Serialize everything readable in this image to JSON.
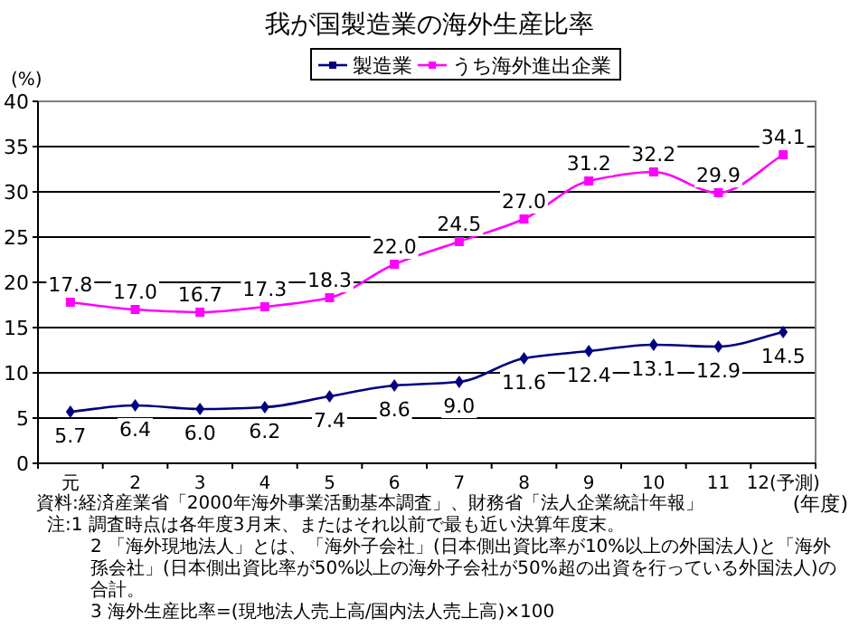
{
  "chart_data": {
    "type": "line",
    "title": "我が国製造業の海外生産比率",
    "ylabel": "(%)",
    "xlabel": "(年度)",
    "categories": [
      "元",
      "2",
      "3",
      "4",
      "5",
      "6",
      "7",
      "8",
      "9",
      "10",
      "11",
      "12(予測)"
    ],
    "series": [
      {
        "name": "製造業",
        "color": "#000080",
        "marker": "diamond",
        "values": [
          5.7,
          6.4,
          6.0,
          6.2,
          7.4,
          8.6,
          9.0,
          11.6,
          12.4,
          13.1,
          12.9,
          14.5
        ],
        "value_labels": [
          "5.7",
          "6.4",
          "6.0",
          "6.2",
          "7.4",
          "8.6",
          "9.0",
          "11.6",
          "12.4",
          "13.1",
          "12.9",
          "14.5"
        ]
      },
      {
        "name": "うち海外進出企業",
        "color": "#ff00ff",
        "marker": "square",
        "values": [
          17.8,
          17.0,
          16.7,
          17.3,
          18.3,
          22.0,
          24.5,
          27.0,
          31.2,
          32.2,
          29.9,
          34.1
        ],
        "value_labels": [
          "17.8",
          "17.0",
          "16.7",
          "17.3",
          "18.3",
          "22.0",
          "24.5",
          "27.0",
          "31.2",
          "32.2",
          "29.9",
          "34.1"
        ]
      }
    ],
    "ylim": [
      0,
      40
    ],
    "yticks": [
      0,
      5,
      10,
      15,
      20,
      25,
      30,
      35,
      40
    ],
    "grid": "y",
    "legend": "top",
    "line_style": "solid",
    "annotations": [
      "資料:経済産業省「2000年海外事業活動基本調査」、財務省「法人企業統計年報」",
      "注:1 調査時点は各年度3月末、またはそれ以前で最も近い決算年度末。",
      "2 「海外現地法人」とは、「海外子会社」(日本側出資比率が10%以上の外国法人)と「海外孫会社」(日本側出資比率が50%以上の海外子会社が50%超の出資を行っている外国法人)の合計。",
      "3 海外生産比率=(現地法人売上高/国内法人売上高)×100"
    ]
  }
}
